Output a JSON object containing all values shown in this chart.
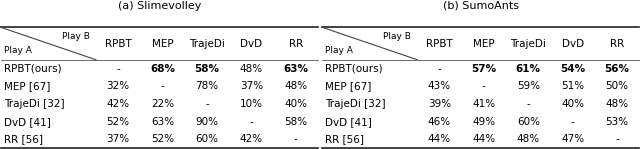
{
  "title_a": "(a) Slimevolley",
  "title_b": "(b) SumoAnts",
  "col_header": [
    "RPBT",
    "MEP",
    "TrajeDi",
    "DvD",
    "RR"
  ],
  "row_header": [
    "RPBT(ours)",
    "MEP [67]",
    "TrajeDi [32]",
    "DvD [41]",
    "RR [56]"
  ],
  "play_b_label": "Play B",
  "play_a_label": "Play A",
  "data_a": [
    [
      "-",
      "68%",
      "58%",
      "48%",
      "63%"
    ],
    [
      "32%",
      "-",
      "78%",
      "37%",
      "48%"
    ],
    [
      "42%",
      "22%",
      "-",
      "10%",
      "40%"
    ],
    [
      "52%",
      "63%",
      "90%",
      "-",
      "58%"
    ],
    [
      "37%",
      "52%",
      "60%",
      "42%",
      "-"
    ]
  ],
  "bold_a": [
    [
      false,
      true,
      true,
      false,
      true
    ],
    [
      false,
      false,
      false,
      false,
      false
    ],
    [
      false,
      false,
      false,
      false,
      false
    ],
    [
      false,
      false,
      false,
      false,
      false
    ],
    [
      false,
      false,
      false,
      false,
      false
    ]
  ],
  "data_b": [
    [
      "-",
      "57%",
      "61%",
      "54%",
      "56%"
    ],
    [
      "43%",
      "-",
      "59%",
      "51%",
      "50%"
    ],
    [
      "39%",
      "41%",
      "-",
      "40%",
      "48%"
    ],
    [
      "46%",
      "49%",
      "60%",
      "-",
      "53%"
    ],
    [
      "44%",
      "44%",
      "48%",
      "47%",
      "-"
    ]
  ],
  "bold_b": [
    [
      false,
      true,
      true,
      true,
      true
    ],
    [
      false,
      false,
      false,
      false,
      false
    ],
    [
      false,
      false,
      false,
      false,
      false
    ],
    [
      false,
      false,
      false,
      false,
      false
    ],
    [
      false,
      false,
      false,
      false,
      false
    ]
  ],
  "bg_color": "#ffffff",
  "text_color": "#000000",
  "font_size": 7.5
}
